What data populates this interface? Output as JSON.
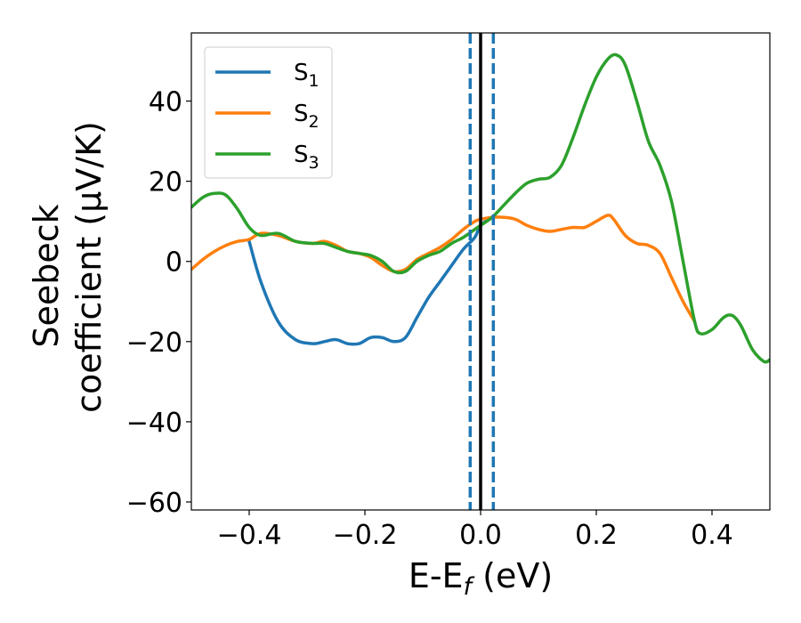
{
  "chart_data": {
    "type": "line",
    "xlabel": {
      "main": "E-E",
      "sub": "f",
      "suffix": " (eV)"
    },
    "ylabel": {
      "line1": "Seebeck",
      "line2": "coefficient  (μV/K)"
    },
    "xlim": [
      -0.5,
      0.5
    ],
    "ylim": [
      -62,
      57
    ],
    "xticks": [
      -0.4,
      -0.2,
      0.0,
      0.2,
      0.4
    ],
    "xtick_labels": [
      "−0.4",
      "−0.2",
      "0.0",
      "0.2",
      "0.4"
    ],
    "yticks": [
      -60,
      -40,
      -20,
      0,
      20,
      40
    ],
    "ytick_labels": [
      "−60",
      "−40",
      "−20",
      "0",
      "20",
      "40"
    ],
    "grid": false,
    "legend_position": "top-left",
    "vlines": [
      {
        "x": 0.0,
        "color": "#000000",
        "style": "solid"
      },
      {
        "x": -0.018,
        "color": "#1f77b4",
        "style": "dashed"
      },
      {
        "x": 0.022,
        "color": "#1f77b4",
        "style": "dashed"
      }
    ],
    "series": [
      {
        "name": "S",
        "sub": "1",
        "color": "#1f77b4",
        "x": [
          -0.4,
          -0.38,
          -0.35,
          -0.32,
          -0.29,
          -0.27,
          -0.25,
          -0.23,
          -0.21,
          -0.19,
          -0.17,
          -0.15,
          -0.13,
          -0.11,
          -0.09,
          -0.07,
          -0.05,
          -0.03,
          -0.01,
          0.0,
          0.02
        ],
        "y": [
          5,
          -5,
          -15,
          -19.5,
          -20.5,
          -20,
          -19.5,
          -20.5,
          -20.5,
          -19,
          -19,
          -20,
          -19,
          -14,
          -9,
          -5,
          -1,
          3,
          6,
          9,
          11
        ]
      },
      {
        "name": "S",
        "sub": "2",
        "color": "#ff7f0e",
        "x": [
          -0.5,
          -0.48,
          -0.46,
          -0.44,
          -0.42,
          -0.4,
          -0.38,
          -0.35,
          -0.32,
          -0.29,
          -0.27,
          -0.25,
          -0.23,
          -0.21,
          -0.19,
          -0.17,
          -0.15,
          -0.13,
          -0.11,
          -0.09,
          -0.07,
          -0.05,
          -0.03,
          -0.01,
          0.0,
          0.02,
          0.04,
          0.06,
          0.08,
          0.1,
          0.12,
          0.14,
          0.16,
          0.18,
          0.2,
          0.22,
          0.23,
          0.25,
          0.27,
          0.29,
          0.31,
          0.33,
          0.35,
          0.37
        ],
        "y": [
          -2,
          0.5,
          2.5,
          4,
          5,
          5.5,
          7,
          6.5,
          5,
          4.5,
          5,
          4,
          2.5,
          2,
          1,
          -1,
          -2.5,
          -2,
          0.5,
          2,
          3.5,
          5.5,
          8,
          10,
          10.5,
          11,
          11,
          10.5,
          9,
          8,
          7.5,
          8,
          8.5,
          8.5,
          10,
          11.5,
          10.5,
          6.5,
          4.5,
          4,
          2,
          -4,
          -10,
          -15
        ]
      },
      {
        "name": "S",
        "sub": "3",
        "color": "#2ca02c",
        "x": [
          -0.5,
          -0.48,
          -0.46,
          -0.44,
          -0.42,
          -0.4,
          -0.38,
          -0.35,
          -0.32,
          -0.29,
          -0.27,
          -0.25,
          -0.23,
          -0.21,
          -0.19,
          -0.17,
          -0.15,
          -0.13,
          -0.11,
          -0.09,
          -0.07,
          -0.05,
          -0.03,
          -0.01,
          0.0,
          0.02,
          0.04,
          0.06,
          0.08,
          0.1,
          0.12,
          0.14,
          0.16,
          0.18,
          0.2,
          0.22,
          0.235,
          0.25,
          0.27,
          0.29,
          0.31,
          0.33,
          0.35,
          0.37,
          0.38,
          0.4,
          0.42,
          0.435,
          0.45,
          0.47,
          0.49,
          0.5
        ],
        "y": [
          13.5,
          16,
          17,
          16.5,
          13,
          8.5,
          6.5,
          7,
          5,
          4.5,
          4.5,
          3.5,
          2.5,
          2,
          1.5,
          0,
          -2.5,
          -2.5,
          0,
          1.5,
          2.5,
          4.5,
          6,
          8,
          9,
          11,
          14,
          17,
          19.5,
          20.5,
          21,
          24,
          31,
          39,
          46,
          50.5,
          51.5,
          49,
          40,
          30,
          24,
          15,
          0,
          -15,
          -18,
          -17,
          -14,
          -13.5,
          -16,
          -22,
          -25,
          -24.5
        ]
      }
    ]
  }
}
